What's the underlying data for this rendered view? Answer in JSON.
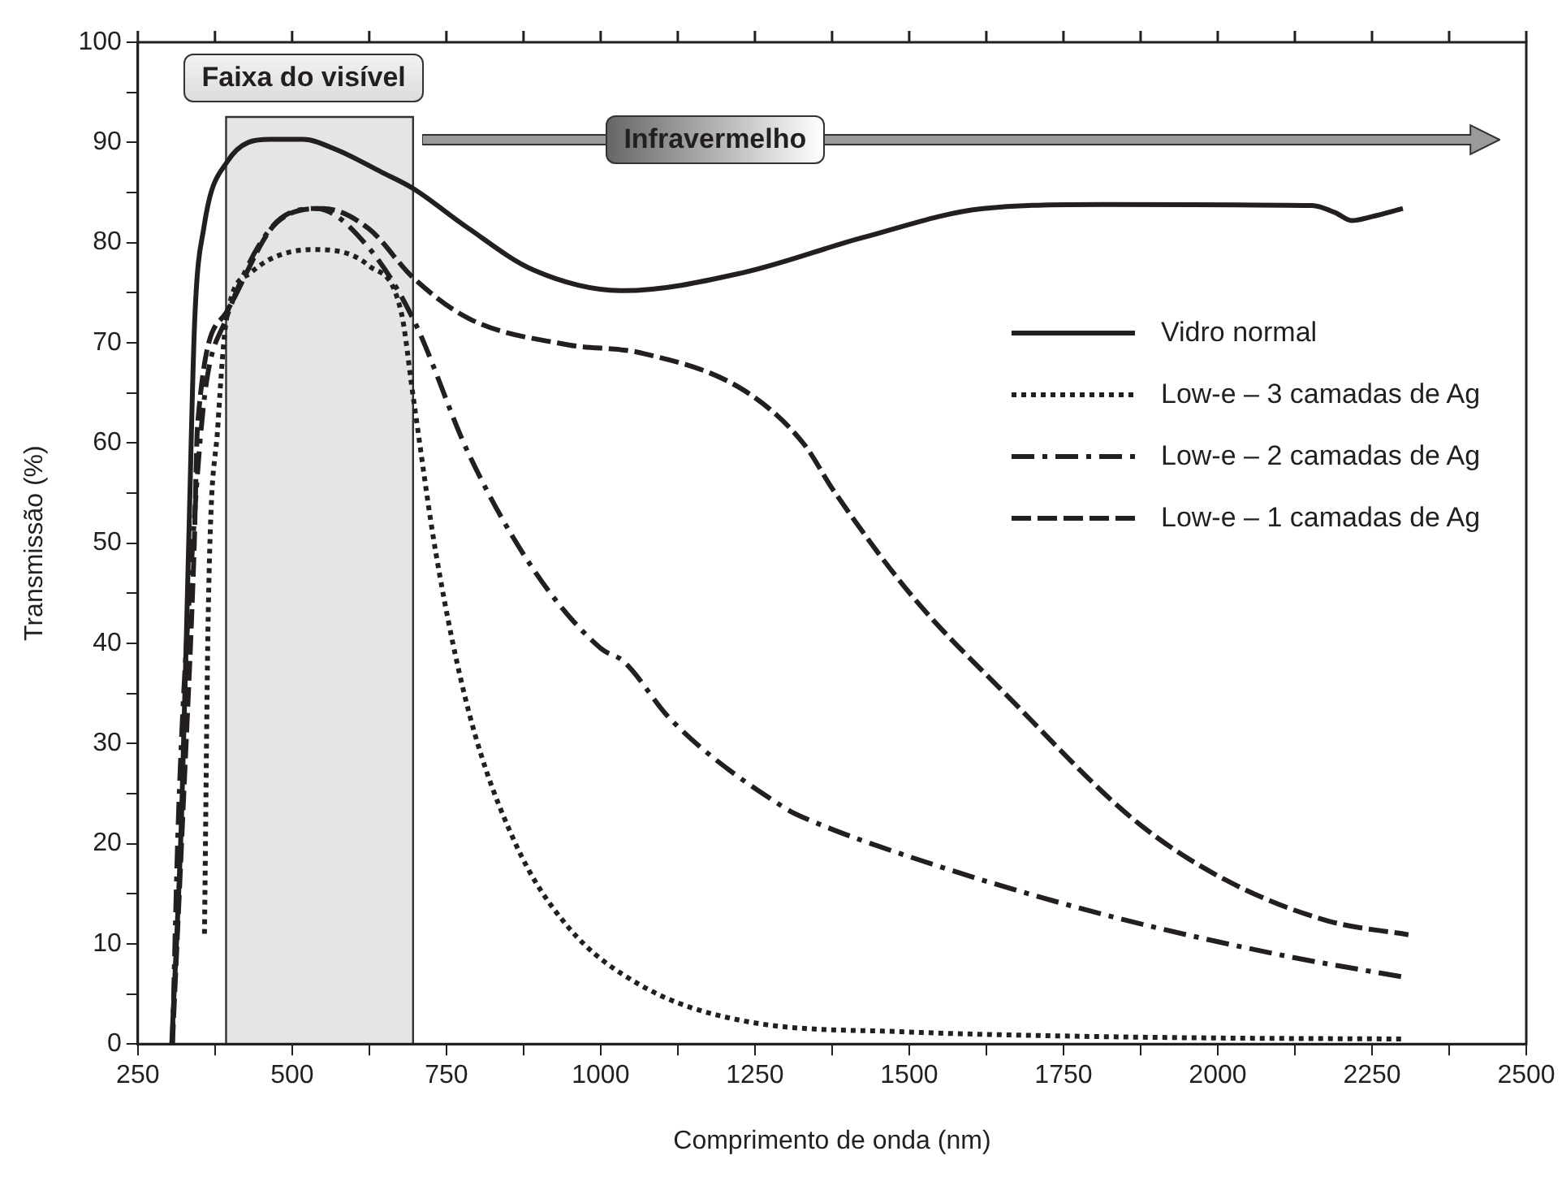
{
  "chart_data": {
    "type": "line",
    "xlabel": "Comprimento de onda (nm)",
    "ylabel": "Transmissão (%)",
    "xlim": [
      250,
      2500
    ],
    "xticks": [
      250,
      {
        "value": 375,
        "label": null
      },
      500,
      {
        "value": 625,
        "label": null
      },
      750,
      {
        "value": 875,
        "label": null
      },
      1000,
      {
        "value": 1125,
        "label": null
      },
      1250,
      {
        "value": 1375,
        "label": null
      },
      1500,
      {
        "value": 1625,
        "label": null
      },
      1750,
      {
        "value": 1875,
        "label": null
      },
      2000,
      {
        "value": 2125,
        "label": null
      },
      2250,
      {
        "value": 2375,
        "label": null
      },
      2500
    ],
    "ylim": [
      0,
      100
    ],
    "yticks": [
      0,
      {
        "value": 5,
        "label": null
      },
      10,
      {
        "value": 15,
        "label": null
      },
      20,
      {
        "value": 25,
        "label": null
      },
      30,
      {
        "value": 35,
        "label": null
      },
      40,
      {
        "value": 45,
        "label": null
      },
      50,
      {
        "value": 55,
        "label": null
      },
      60,
      {
        "value": 65,
        "label": null
      },
      70,
      {
        "value": 75,
        "label": null
      },
      80,
      {
        "value": 85,
        "label": null
      },
      90,
      {
        "value": 95,
        "label": null
      },
      100
    ],
    "grid": false,
    "legend": "right",
    "marker": "none",
    "bands": [
      {
        "axis": "x",
        "from": 393,
        "to": 696,
        "label": "Faixa do visível",
        "color": "#e4e5e7"
      }
    ],
    "annotations": [
      "Infravermelho"
    ],
    "series": [
      {
        "name": "Vidro normal",
        "color": "#231f20",
        "line_style": "solid",
        "x": [
          305,
          321,
          332,
          342,
          357,
          394,
          465,
          518,
          571,
          646,
          696,
          784,
          890,
          1037,
          1231,
          1425,
          1620,
          1814,
          2153,
          2190,
          2217,
          2250,
          2300
        ],
        "values": [
          0,
          23,
          49,
          72,
          81.5,
          88,
          90.3,
          90.3,
          89.3,
          87,
          85.4,
          81.5,
          77.3,
          75.2,
          77,
          80.5,
          83.4,
          83.8,
          83.7,
          83,
          82.2,
          82.6,
          83.4
        ]
      },
      {
        "name": "Low-e – 3 camadas de Ag",
        "color": "#231f20",
        "line_style": "dotted",
        "x": [
          358,
          364,
          380,
          394,
          433,
          534,
          624,
          677,
          696,
          733,
          787,
          862,
          947,
          1064,
          1232,
          1500,
          1750,
          2000,
          2300
        ],
        "values": [
          11,
          42.7,
          62,
          72.5,
          77,
          79.3,
          77.7,
          73,
          64.7,
          49,
          33,
          20,
          11.7,
          5.9,
          2.3,
          1.2,
          0.8,
          0.6,
          0.5
        ]
      },
      {
        "name": "Low-e – 2 camadas de Ag",
        "color": "#231f20",
        "line_style": "dashdot",
        "x": [
          306,
          316,
          338,
          358,
          393,
          465,
          539,
          624,
          696,
          787,
          893,
          1000,
          1037,
          1115,
          1300,
          1329,
          1525,
          1817,
          2109,
          2309
        ],
        "values": [
          0,
          23,
          49,
          64.6,
          72.4,
          81.4,
          83.4,
          79.5,
          72.4,
          58.8,
          47.2,
          39.5,
          38.2,
          32.3,
          23.5,
          22.6,
          18.2,
          12.9,
          8.8,
          6.6
        ]
      },
      {
        "name": "Low-e – 1 camadas de Ag",
        "color": "#231f20",
        "line_style": "dashed",
        "x": [
          306,
          323,
          341,
          347,
          393,
          475,
          550,
          624,
          696,
          787,
          947,
          1064,
          1231,
          1328,
          1378,
          1505,
          1660,
          1866,
          2012,
          2178,
          2309
        ],
        "values": [
          0,
          23,
          49,
          62,
          73,
          82,
          83.4,
          81.4,
          76.5,
          72.4,
          69.8,
          69,
          65.3,
          60,
          55.2,
          44.7,
          34.7,
          22.3,
          16.4,
          12.3,
          10.9
        ]
      }
    ]
  }
}
